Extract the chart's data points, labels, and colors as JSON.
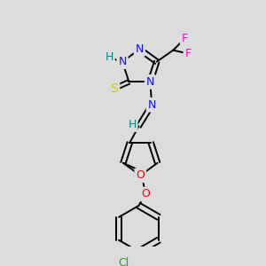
{
  "background_color": "#dcdcdc",
  "bond_color": "#000000",
  "bond_width": 1.4,
  "figsize": [
    3.0,
    3.0
  ],
  "dpi": 100,
  "colors": {
    "N": "#1010ff",
    "O": "#ff0000",
    "S": "#cccc00",
    "F": "#ff00cc",
    "Cl": "#00bb00",
    "H": "#008888",
    "C": "#000000"
  }
}
